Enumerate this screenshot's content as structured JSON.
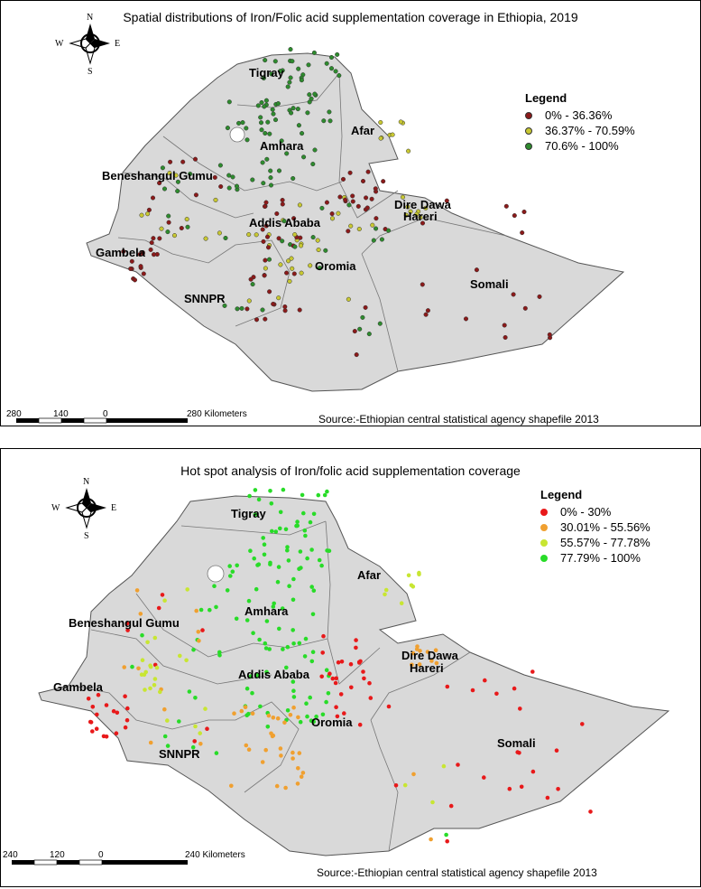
{
  "top_map": {
    "title": "Spatial distributions of Iron/Folic acid supplementation coverage in Ethiopia, 2019",
    "legend": {
      "title": "Legend",
      "items": [
        {
          "label": "0% - 36.36%",
          "color": "#8b1a1a"
        },
        {
          "label": "36.37% - 70.59%",
          "color": "#c8c832"
        },
        {
          "label": "70.6% - 100%",
          "color": "#2e8b2e"
        }
      ]
    },
    "regions": [
      "Tigray",
      "Afar",
      "Amhara",
      "Beneshangul Gumu",
      "Dire Dawa",
      "Hareri",
      "Addis Ababa",
      "Gambela",
      "Oromia",
      "Somali",
      "SNNPR"
    ],
    "scale": {
      "ticks": [
        "280",
        "140",
        "0",
        "280 Kilometers"
      ]
    },
    "source": "Source:-Ethiopian central statistical agency shapefile 2013",
    "compass": {
      "n": "N",
      "s": "S",
      "e": "E",
      "w": "W"
    }
  },
  "bottom_map": {
    "title": "Hot spot analysis of Iron/folic acid supplementation coverage",
    "legend": {
      "title": "Legend",
      "items": [
        {
          "label": "0% - 30%",
          "color": "#e8191a"
        },
        {
          "label": "30.01% - 55.56%",
          "color": "#f0a030"
        },
        {
          "label": "55.57% - 77.78%",
          "color": "#c8e632"
        },
        {
          "label": "77.79% - 100%",
          "color": "#28dc28"
        }
      ]
    },
    "regions": [
      "Tigray",
      "Afar",
      "Amhara",
      "Beneshangul Gumu",
      "Dire Dawa",
      "Hareri",
      "Addis Ababa",
      "Gambela",
      "Oromia",
      "Somali",
      "SNNPR"
    ],
    "scale": {
      "ticks": [
        "240",
        "120",
        "0",
        "240 Kilometers"
      ]
    },
    "source": "Source:-Ethiopian central statistical agency shapefile 2013",
    "compass": {
      "n": "N",
      "s": "S",
      "e": "E",
      "w": "W"
    }
  }
}
